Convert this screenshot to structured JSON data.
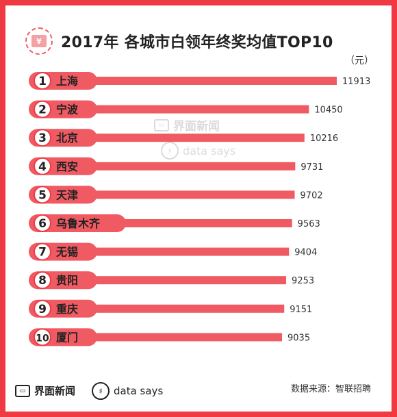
{
  "header": {
    "title": "2017年 各城市白领年终奖均值TOP10",
    "icon": "red-envelope-yen-icon"
  },
  "unit": "（元）",
  "watermark": {
    "brand": "界面新闻",
    "tag": "data says"
  },
  "footer": {
    "brand": "界面新闻",
    "tag": "data says",
    "source": "数据来源：智联招聘"
  },
  "colors": {
    "bar": "#f05a62",
    "badge": "#ef3a44",
    "badge_fill": "#ffffff",
    "frame": "#ef3a44"
  },
  "chart_data": {
    "type": "bar",
    "orientation": "horizontal",
    "title": "2017年 各城市白领年终奖均值TOP10",
    "unit": "（元）",
    "ranks": [
      "1",
      "2",
      "3",
      "4",
      "5",
      "6",
      "7",
      "8",
      "9",
      "10"
    ],
    "categories": [
      "上海",
      "宁波",
      "北京",
      "西安",
      "天津",
      "乌鲁木齐",
      "无锡",
      "贵阳",
      "重庆",
      "厦门"
    ],
    "values": [
      11913,
      10450,
      10216,
      9731,
      9702,
      9563,
      9404,
      9253,
      9151,
      9035
    ],
    "xlim": [
      0,
      11913
    ]
  }
}
